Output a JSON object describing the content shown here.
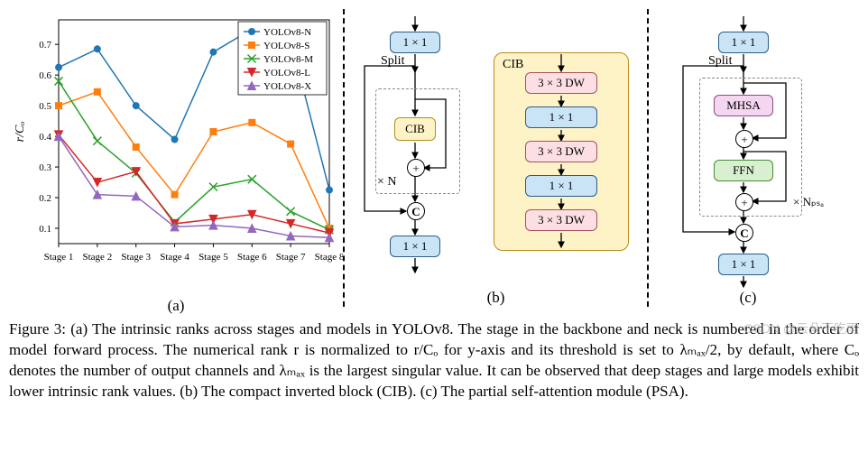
{
  "chart": {
    "type": "line",
    "title": "",
    "ylabel": "r/Cₒ",
    "ylabel_fontsize": 14,
    "x_categories": [
      "Stage 1",
      "Stage 2",
      "Stage 3",
      "Stage 4",
      "Stage 5",
      "Stage 6",
      "Stage 7",
      "Stage 8"
    ],
    "ylim": [
      0.05,
      0.78
    ],
    "yticks": [
      0.1,
      0.2,
      0.3,
      0.4,
      0.5,
      0.6,
      0.7
    ],
    "background_color": "#ffffff",
    "grid_color": "#d8d8d8",
    "axis_color": "#000000",
    "tick_fontsize": 11,
    "marker_size": 4.5,
    "line_width": 1.5,
    "legend_fontsize": 11,
    "legend_border": "#000000",
    "series": [
      {
        "name": "YOLOv8-N",
        "color": "#1f77b4",
        "marker": "circle",
        "values": [
          0.625,
          0.685,
          0.5,
          0.39,
          0.675,
          0.75,
          0.715,
          0.225
        ]
      },
      {
        "name": "YOLOv8-S",
        "color": "#ff7f0e",
        "marker": "square",
        "values": [
          0.5,
          0.545,
          0.365,
          0.21,
          0.415,
          0.445,
          0.375,
          0.1
        ]
      },
      {
        "name": "YOLOv8-M",
        "color": "#2ca02c",
        "marker": "x",
        "values": [
          0.58,
          0.385,
          0.28,
          0.12,
          0.235,
          0.26,
          0.155,
          0.095
        ]
      },
      {
        "name": "YOLOv8-L",
        "color": "#d62728",
        "marker": "triangle-down",
        "values": [
          0.405,
          0.25,
          0.285,
          0.115,
          0.13,
          0.145,
          0.115,
          0.085
        ]
      },
      {
        "name": "YOLOv8-X",
        "color": "#9467bd",
        "marker": "triangle-up",
        "values": [
          0.4,
          0.21,
          0.205,
          0.105,
          0.11,
          0.1,
          0.075,
          0.07
        ]
      }
    ]
  },
  "panel_b": {
    "left": {
      "blocks": {
        "top": "1 × 1",
        "mid": "CIB",
        "bot": "1 × 1"
      },
      "split_label": "Split",
      "n_label": "× N",
      "concat": "C",
      "add": "+"
    },
    "right": {
      "title": "CIB",
      "stack": [
        "3 × 3 DW",
        "1 × 1",
        "3 × 3 DW",
        "1 × 1",
        "3 × 3 DW"
      ]
    }
  },
  "panel_c": {
    "blocks": {
      "top": "1 × 1",
      "mhsa": "MHSA",
      "ffn": "FFN",
      "bot": "1 × 1"
    },
    "split_label": "Split",
    "n_label": "× Nₚₛₐ",
    "concat": "C",
    "add": "+"
  },
  "sublabels": {
    "a": "(a)",
    "b": "(b)",
    "c": "(c)"
  },
  "caption": "Figure 3: (a) The intrinsic ranks across stages and models in YOLOv8. The stage in the backbone and neck is numbered in the order of model forward process. The numerical rank r is normalized to r/Cₒ for y-axis and its threshold is set to λₘₐₓ/2, by default, where Cₒ denotes the number of output channels and λₘₐₓ is the largest singular value. It can be observed that deep stages and large models exhibit lower intrinsic rank values. (b) The compact inverted block (CIB). (c) The partial self-attention module (PSA).",
  "watermark": "CSDN @云朵不吃雨"
}
